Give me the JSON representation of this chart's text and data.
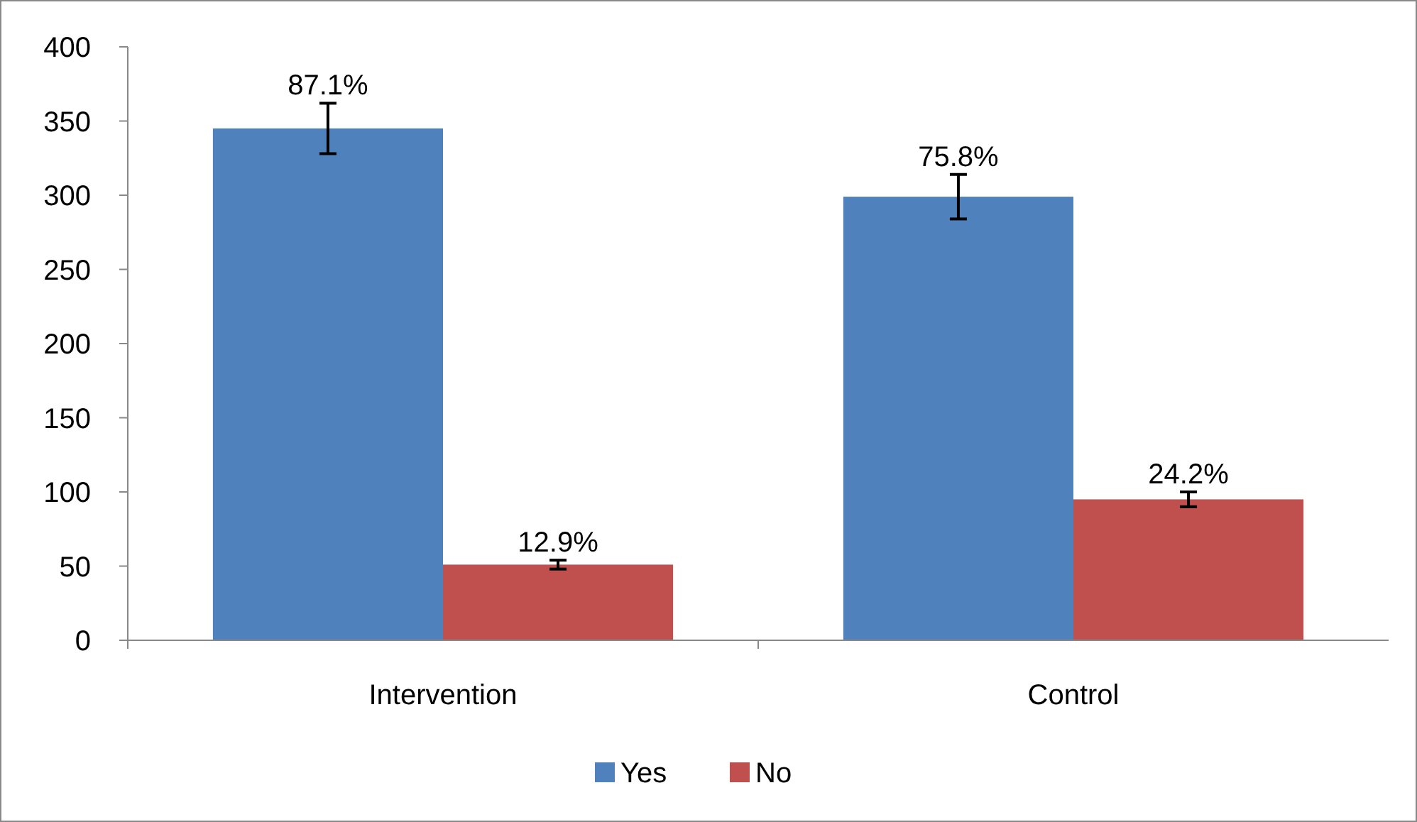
{
  "chart_data": {
    "type": "bar",
    "categories": [
      "Intervention",
      "Control"
    ],
    "series": [
      {
        "name": "Yes",
        "color": "#4f81bd",
        "values": [
          345,
          299
        ],
        "errors": [
          17,
          15
        ]
      },
      {
        "name": "No",
        "color": "#c0504d",
        "values": [
          51,
          95
        ],
        "errors": [
          3,
          5
        ]
      }
    ],
    "annotations": [
      {
        "text": "87.1%",
        "x": "Intervention",
        "y": 345
      },
      {
        "text": "12.9%",
        "x": "Intervention",
        "y": 51
      },
      {
        "text": "75.8%",
        "x": "Control",
        "y": 299
      },
      {
        "text": "24.2%",
        "x": "Control",
        "y": 95
      }
    ],
    "ylim": [
      0,
      400
    ],
    "yticks": [
      0,
      50,
      100,
      150,
      200,
      250,
      300,
      350,
      400
    ],
    "grid": false,
    "legend": "bottom"
  }
}
